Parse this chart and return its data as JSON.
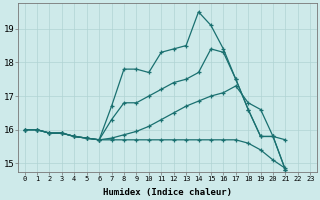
{
  "xlabel": "Humidex (Indice chaleur)",
  "ylabel": "",
  "bg_color": "#ceeaea",
  "line_color": "#1a7070",
  "grid_color": "#b0d4d4",
  "lines": [
    {
      "x": [
        0,
        1,
        2,
        3,
        4,
        5,
        6,
        7,
        8,
        9,
        10,
        11,
        12,
        13,
        14,
        15,
        16,
        17,
        18,
        19,
        20,
        21,
        22,
        23
      ],
      "y": [
        16.0,
        16.0,
        15.9,
        15.9,
        15.8,
        15.75,
        15.7,
        16.7,
        17.8,
        17.8,
        17.7,
        18.3,
        18.4,
        18.5,
        19.5,
        19.1,
        18.4,
        17.5,
        16.6,
        15.8,
        15.8,
        14.8,
        null,
        null
      ]
    },
    {
      "x": [
        0,
        1,
        2,
        3,
        4,
        5,
        6,
        7,
        8,
        9,
        10,
        11,
        12,
        13,
        14,
        15,
        16,
        17,
        18,
        19,
        20,
        21,
        22,
        23
      ],
      "y": [
        16.0,
        16.0,
        15.9,
        15.9,
        15.8,
        15.75,
        15.7,
        16.3,
        16.8,
        16.8,
        17.0,
        17.2,
        17.4,
        17.5,
        17.7,
        18.4,
        18.3,
        17.5,
        16.6,
        15.8,
        15.8,
        14.8,
        null,
        null
      ]
    },
    {
      "x": [
        0,
        1,
        2,
        3,
        4,
        5,
        6,
        7,
        8,
        9,
        10,
        11,
        12,
        13,
        14,
        15,
        16,
        17,
        18,
        19,
        20,
        21,
        22,
        23
      ],
      "y": [
        16.0,
        16.0,
        15.9,
        15.9,
        15.8,
        15.75,
        15.7,
        15.75,
        15.85,
        15.95,
        16.1,
        16.3,
        16.5,
        16.7,
        16.85,
        17.0,
        17.1,
        17.3,
        16.8,
        16.6,
        15.8,
        15.7,
        null,
        null
      ]
    },
    {
      "x": [
        0,
        1,
        2,
        3,
        4,
        5,
        6,
        7,
        8,
        9,
        10,
        11,
        12,
        13,
        14,
        15,
        16,
        17,
        18,
        19,
        20,
        21,
        22,
        23
      ],
      "y": [
        16.0,
        16.0,
        15.9,
        15.9,
        15.8,
        15.75,
        15.7,
        15.7,
        15.7,
        15.7,
        15.7,
        15.7,
        15.7,
        15.7,
        15.7,
        15.7,
        15.7,
        15.7,
        15.6,
        15.4,
        15.1,
        14.85,
        null,
        null
      ]
    }
  ],
  "xlim": [
    -0.5,
    23.5
  ],
  "ylim": [
    14.75,
    19.75
  ],
  "yticks": [
    15,
    16,
    17,
    18,
    19
  ],
  "xticks": [
    0,
    1,
    2,
    3,
    4,
    5,
    6,
    7,
    8,
    9,
    10,
    11,
    12,
    13,
    14,
    15,
    16,
    17,
    18,
    19,
    20,
    21,
    22,
    23
  ],
  "xtick_labels": [
    "0",
    "1",
    "2",
    "3",
    "4",
    "5",
    "6",
    "7",
    "8",
    "9",
    "10",
    "11",
    "12",
    "13",
    "14",
    "15",
    "16",
    "17",
    "18",
    "19",
    "20",
    "21",
    "22",
    "23"
  ],
  "marker": "+",
  "markersize": 3.5,
  "linewidth": 0.9
}
